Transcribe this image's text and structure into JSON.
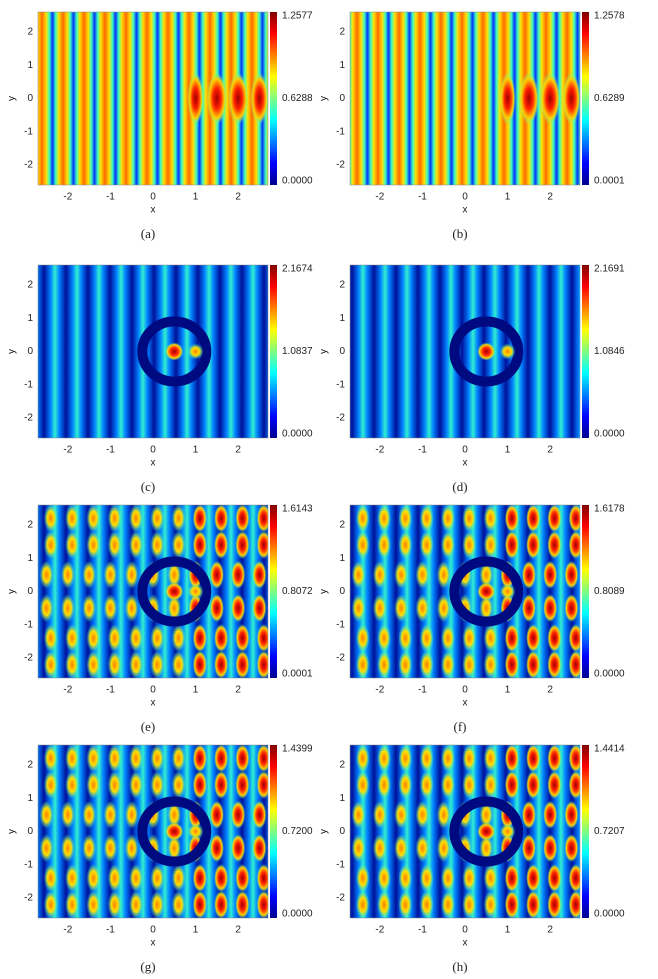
{
  "axes": {
    "xlabel": "x",
    "ylabel": "y",
    "xlim": [
      -2.7,
      2.7
    ],
    "ylim": [
      -2.6,
      2.6
    ],
    "xticks": [
      -2,
      -1,
      0,
      1,
      2
    ],
    "yticks": [
      -2,
      -1,
      0,
      1,
      2
    ]
  },
  "panels": [
    {
      "caption": "(a)",
      "colorbar_ticks": [
        "0.0000",
        "0.6288",
        "1.2577"
      ]
    },
    {
      "caption": "(b)",
      "colorbar_ticks": [
        "0.0001",
        "0.6289",
        "1.2578"
      ]
    },
    {
      "caption": "(c)",
      "colorbar_ticks": [
        "0.0000",
        "1.0837",
        "2.1674"
      ]
    },
    {
      "caption": "(d)",
      "colorbar_ticks": [
        "0.0000",
        "1.0846",
        "2.1691"
      ]
    },
    {
      "caption": "(e)",
      "colorbar_ticks": [
        "0.0001",
        "0.8072",
        "1.6143"
      ]
    },
    {
      "caption": "(f)",
      "colorbar_ticks": [
        "0.0000",
        "0.8089",
        "1.6178"
      ]
    },
    {
      "caption": "(g)",
      "colorbar_ticks": [
        "0.0000",
        "0.7200",
        "1.4399"
      ]
    },
    {
      "caption": "(h)",
      "colorbar_ticks": [
        "0.0000",
        "0.7207",
        "1.4414"
      ]
    }
  ]
}
